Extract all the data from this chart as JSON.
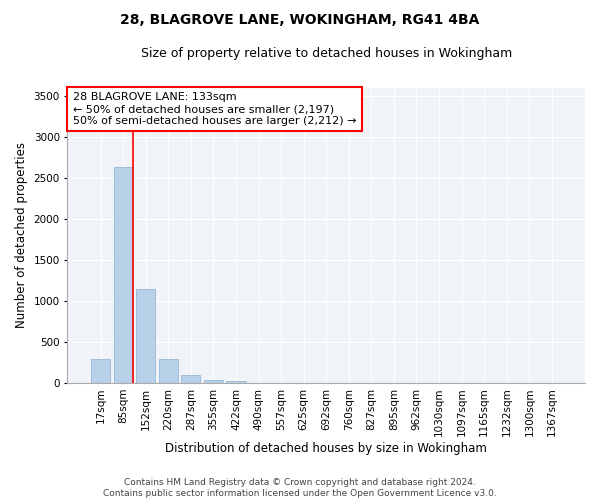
{
  "title1": "28, BLAGROVE LANE, WOKINGHAM, RG41 4BA",
  "title2": "Size of property relative to detached houses in Wokingham",
  "xlabel": "Distribution of detached houses by size in Wokingham",
  "ylabel": "Number of detached properties",
  "footer1": "Contains HM Land Registry data © Crown copyright and database right 2024.",
  "footer2": "Contains public sector information licensed under the Open Government Licence v3.0.",
  "bar_labels": [
    "17sqm",
    "85sqm",
    "152sqm",
    "220sqm",
    "287sqm",
    "355sqm",
    "422sqm",
    "490sqm",
    "557sqm",
    "625sqm",
    "692sqm",
    "760sqm",
    "827sqm",
    "895sqm",
    "962sqm",
    "1030sqm",
    "1097sqm",
    "1165sqm",
    "1232sqm",
    "1300sqm",
    "1367sqm"
  ],
  "bar_values": [
    290,
    2640,
    1140,
    295,
    100,
    40,
    20,
    0,
    0,
    0,
    0,
    0,
    0,
    0,
    0,
    0,
    0,
    0,
    0,
    0,
    0
  ],
  "bar_color": "#b8d0e8",
  "bar_edgecolor": "#8ab0d0",
  "grid_color": "#d0dcea",
  "vline_color": "red",
  "annotation_text": "28 BLAGROVE LANE: 133sqm\n← 50% of detached houses are smaller (2,197)\n50% of semi-detached houses are larger (2,212) →",
  "annotation_box_color": "white",
  "annotation_box_edgecolor": "red",
  "ylim": [
    0,
    3600
  ],
  "yticks": [
    0,
    500,
    1000,
    1500,
    2000,
    2500,
    3000,
    3500
  ],
  "title_fontsize": 10,
  "subtitle_fontsize": 9,
  "axis_label_fontsize": 8.5,
  "tick_fontsize": 7.5,
  "annotation_fontsize": 8,
  "footer_fontsize": 6.5
}
